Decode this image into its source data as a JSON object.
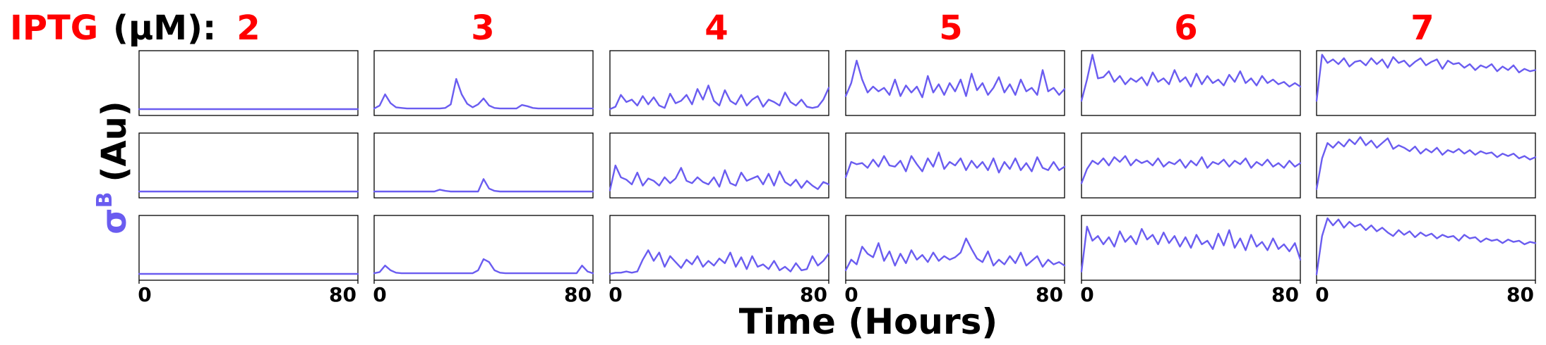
{
  "figure": {
    "iptg_prefix": "IPTG",
    "iptg_unit": "(μM):",
    "iptg_values": [
      "2",
      "3",
      "4",
      "5",
      "6",
      "7"
    ],
    "ylabel_symbol": "σ",
    "ylabel_superscript": "B",
    "ylabel_unit": "(Au)",
    "xlabel": "Time (Hours)",
    "colors": {
      "accent": "#ff0000",
      "trace": "#6a5cf0",
      "text": "#000000",
      "frame": "#000000"
    }
  },
  "chart_data": {
    "type": "line",
    "title": "",
    "xlabel": "Time (Hours)",
    "ylabel": "σB (Au)",
    "xlim": [
      0,
      80
    ],
    "x_ticks": [
      0,
      80
    ],
    "x_tick_labels": [
      "0",
      "80"
    ],
    "ylim": [
      0,
      1
    ],
    "y_ticks_shown": false,
    "grid": false,
    "x_step_hours": 2,
    "iptg_levels_uM": [
      2,
      3,
      4,
      5,
      6,
      7
    ],
    "series": [
      {
        "iptg": 2,
        "replicate": 1,
        "values": [
          0.06,
          0.06,
          0.06,
          0.06,
          0.06,
          0.06,
          0.06,
          0.06,
          0.06,
          0.06,
          0.06,
          0.06,
          0.06,
          0.06,
          0.06,
          0.06,
          0.06,
          0.06,
          0.06,
          0.06,
          0.06,
          0.06,
          0.06,
          0.06,
          0.06,
          0.06,
          0.06,
          0.06,
          0.06,
          0.06,
          0.06,
          0.06,
          0.06,
          0.06,
          0.06,
          0.06,
          0.06,
          0.06,
          0.06,
          0.06,
          0.06
        ]
      },
      {
        "iptg": 2,
        "replicate": 2,
        "values": [
          0.06,
          0.06,
          0.06,
          0.06,
          0.06,
          0.06,
          0.06,
          0.06,
          0.06,
          0.06,
          0.06,
          0.06,
          0.06,
          0.06,
          0.06,
          0.06,
          0.06,
          0.06,
          0.06,
          0.06,
          0.06,
          0.06,
          0.06,
          0.06,
          0.06,
          0.06,
          0.06,
          0.06,
          0.06,
          0.06,
          0.06,
          0.06,
          0.06,
          0.06,
          0.06,
          0.06,
          0.06,
          0.06,
          0.06,
          0.06,
          0.06
        ]
      },
      {
        "iptg": 2,
        "replicate": 3,
        "values": [
          0.06,
          0.06,
          0.06,
          0.06,
          0.06,
          0.06,
          0.06,
          0.06,
          0.06,
          0.06,
          0.06,
          0.06,
          0.06,
          0.06,
          0.06,
          0.06,
          0.06,
          0.06,
          0.06,
          0.06,
          0.06,
          0.06,
          0.06,
          0.06,
          0.06,
          0.06,
          0.06,
          0.06,
          0.06,
          0.06,
          0.06,
          0.06,
          0.06,
          0.06,
          0.06,
          0.06,
          0.06,
          0.06,
          0.06,
          0.06,
          0.06
        ]
      },
      {
        "iptg": 3,
        "replicate": 1,
        "values": [
          0.07,
          0.12,
          0.31,
          0.16,
          0.09,
          0.08,
          0.07,
          0.07,
          0.07,
          0.07,
          0.07,
          0.07,
          0.07,
          0.08,
          0.14,
          0.57,
          0.31,
          0.15,
          0.09,
          0.14,
          0.24,
          0.12,
          0.08,
          0.07,
          0.07,
          0.07,
          0.07,
          0.13,
          0.11,
          0.08,
          0.07,
          0.07,
          0.07,
          0.07,
          0.07,
          0.07,
          0.07,
          0.07,
          0.07,
          0.07,
          0.07
        ]
      },
      {
        "iptg": 3,
        "replicate": 2,
        "values": [
          0.06,
          0.06,
          0.06,
          0.06,
          0.06,
          0.06,
          0.06,
          0.06,
          0.06,
          0.06,
          0.06,
          0.06,
          0.09,
          0.07,
          0.06,
          0.06,
          0.06,
          0.06,
          0.06,
          0.06,
          0.27,
          0.11,
          0.07,
          0.06,
          0.06,
          0.06,
          0.06,
          0.06,
          0.06,
          0.06,
          0.06,
          0.06,
          0.06,
          0.06,
          0.06,
          0.06,
          0.06,
          0.06,
          0.06,
          0.06,
          0.06
        ]
      },
      {
        "iptg": 3,
        "replicate": 3,
        "values": [
          0.07,
          0.09,
          0.2,
          0.12,
          0.08,
          0.07,
          0.07,
          0.07,
          0.07,
          0.07,
          0.07,
          0.07,
          0.07,
          0.07,
          0.07,
          0.07,
          0.07,
          0.07,
          0.07,
          0.12,
          0.31,
          0.26,
          0.12,
          0.08,
          0.07,
          0.07,
          0.07,
          0.07,
          0.07,
          0.07,
          0.07,
          0.07,
          0.07,
          0.07,
          0.07,
          0.07,
          0.07,
          0.07,
          0.2,
          0.1,
          0.07
        ]
      },
      {
        "iptg": 4,
        "replicate": 1,
        "values": [
          0.06,
          0.1,
          0.3,
          0.18,
          0.22,
          0.12,
          0.28,
          0.14,
          0.26,
          0.12,
          0.08,
          0.32,
          0.16,
          0.2,
          0.3,
          0.14,
          0.4,
          0.22,
          0.46,
          0.2,
          0.12,
          0.38,
          0.2,
          0.14,
          0.3,
          0.12,
          0.22,
          0.28,
          0.1,
          0.22,
          0.18,
          0.12,
          0.34,
          0.18,
          0.12,
          0.22,
          0.1,
          0.08,
          0.1,
          0.22,
          0.42
        ]
      },
      {
        "iptg": 4,
        "replicate": 2,
        "values": [
          0.08,
          0.5,
          0.3,
          0.26,
          0.18,
          0.38,
          0.16,
          0.28,
          0.24,
          0.16,
          0.3,
          0.2,
          0.28,
          0.46,
          0.24,
          0.2,
          0.3,
          0.22,
          0.18,
          0.3,
          0.14,
          0.42,
          0.2,
          0.16,
          0.38,
          0.24,
          0.28,
          0.32,
          0.18,
          0.36,
          0.16,
          0.4,
          0.22,
          0.16,
          0.26,
          0.12,
          0.24,
          0.16,
          0.1,
          0.22,
          0.18
        ]
      },
      {
        "iptg": 4,
        "replicate": 3,
        "values": [
          0.06,
          0.08,
          0.08,
          0.1,
          0.08,
          0.1,
          0.3,
          0.46,
          0.28,
          0.42,
          0.18,
          0.36,
          0.26,
          0.16,
          0.3,
          0.22,
          0.36,
          0.18,
          0.28,
          0.2,
          0.32,
          0.24,
          0.42,
          0.18,
          0.34,
          0.14,
          0.36,
          0.18,
          0.22,
          0.14,
          0.28,
          0.12,
          0.18,
          0.1,
          0.24,
          0.12,
          0.14,
          0.36,
          0.2,
          0.28,
          0.4
        ]
      },
      {
        "iptg": 5,
        "replicate": 1,
        "values": [
          0.28,
          0.5,
          0.88,
          0.56,
          0.34,
          0.44,
          0.36,
          0.42,
          0.3,
          0.56,
          0.28,
          0.46,
          0.34,
          0.44,
          0.26,
          0.62,
          0.34,
          0.48,
          0.3,
          0.5,
          0.36,
          0.56,
          0.28,
          0.66,
          0.38,
          0.5,
          0.3,
          0.42,
          0.6,
          0.34,
          0.48,
          0.3,
          0.56,
          0.36,
          0.42,
          0.3,
          0.72,
          0.36,
          0.42,
          0.3,
          0.4
        ]
      },
      {
        "iptg": 5,
        "replicate": 2,
        "values": [
          0.3,
          0.56,
          0.52,
          0.54,
          0.46,
          0.6,
          0.48,
          0.66,
          0.5,
          0.48,
          0.58,
          0.4,
          0.66,
          0.52,
          0.4,
          0.62,
          0.48,
          0.72,
          0.44,
          0.56,
          0.5,
          0.62,
          0.42,
          0.58,
          0.46,
          0.56,
          0.42,
          0.62,
          0.38,
          0.56,
          0.44,
          0.62,
          0.42,
          0.54,
          0.4,
          0.64,
          0.46,
          0.42,
          0.56,
          0.42,
          0.48
        ]
      },
      {
        "iptg": 5,
        "replicate": 3,
        "values": [
          0.12,
          0.3,
          0.22,
          0.52,
          0.4,
          0.34,
          0.58,
          0.28,
          0.44,
          0.2,
          0.4,
          0.24,
          0.46,
          0.3,
          0.38,
          0.26,
          0.42,
          0.28,
          0.36,
          0.3,
          0.34,
          0.42,
          0.66,
          0.48,
          0.32,
          0.26,
          0.44,
          0.2,
          0.3,
          0.22,
          0.36,
          0.24,
          0.42,
          0.2,
          0.28,
          0.36,
          0.18,
          0.3,
          0.22,
          0.26,
          0.2
        ]
      },
      {
        "iptg": 6,
        "replicate": 1,
        "values": [
          0.2,
          0.56,
          0.98,
          0.58,
          0.6,
          0.7,
          0.52,
          0.62,
          0.48,
          0.58,
          0.52,
          0.6,
          0.46,
          0.68,
          0.52,
          0.58,
          0.48,
          0.72,
          0.52,
          0.6,
          0.44,
          0.66,
          0.48,
          0.62,
          0.5,
          0.56,
          0.46,
          0.64,
          0.52,
          0.7,
          0.5,
          0.58,
          0.46,
          0.62,
          0.5,
          0.56,
          0.48,
          0.52,
          0.44,
          0.5,
          0.44
        ]
      },
      {
        "iptg": 6,
        "replicate": 2,
        "values": [
          0.2,
          0.44,
          0.58,
          0.52,
          0.62,
          0.5,
          0.64,
          0.56,
          0.66,
          0.5,
          0.6,
          0.54,
          0.58,
          0.5,
          0.62,
          0.48,
          0.56,
          0.52,
          0.6,
          0.46,
          0.58,
          0.5,
          0.64,
          0.46,
          0.56,
          0.52,
          0.6,
          0.48,
          0.58,
          0.52,
          0.62,
          0.46,
          0.56,
          0.5,
          0.6,
          0.48,
          0.54,
          0.46,
          0.58,
          0.48,
          0.54
        ]
      },
      {
        "iptg": 6,
        "replicate": 3,
        "values": [
          0.1,
          0.86,
          0.62,
          0.7,
          0.56,
          0.68,
          0.52,
          0.78,
          0.6,
          0.7,
          0.56,
          0.82,
          0.64,
          0.72,
          0.56,
          0.76,
          0.58,
          0.7,
          0.52,
          0.68,
          0.5,
          0.72,
          0.56,
          0.62,
          0.48,
          0.74,
          0.54,
          0.8,
          0.5,
          0.66,
          0.46,
          0.72,
          0.52,
          0.6,
          0.46,
          0.66,
          0.48,
          0.56,
          0.44,
          0.58,
          0.3
        ]
      },
      {
        "iptg": 7,
        "replicate": 1,
        "values": [
          0.2,
          0.98,
          0.84,
          0.9,
          0.82,
          0.92,
          0.78,
          0.86,
          0.88,
          0.8,
          0.92,
          0.82,
          0.9,
          0.76,
          0.94,
          0.84,
          0.88,
          0.78,
          0.86,
          0.92,
          0.8,
          0.86,
          0.9,
          0.74,
          0.88,
          0.82,
          0.84,
          0.76,
          0.82,
          0.72,
          0.8,
          0.76,
          0.82,
          0.7,
          0.78,
          0.72,
          0.8,
          0.68,
          0.74,
          0.7,
          0.72
        ]
      },
      {
        "iptg": 7,
        "replicate": 2,
        "values": [
          0.1,
          0.62,
          0.88,
          0.8,
          0.9,
          0.82,
          0.94,
          0.86,
          0.98,
          0.84,
          0.92,
          0.8,
          0.88,
          0.96,
          0.78,
          0.84,
          0.8,
          0.74,
          0.82,
          0.7,
          0.78,
          0.72,
          0.8,
          0.68,
          0.76,
          0.72,
          0.78,
          0.7,
          0.76,
          0.68,
          0.74,
          0.7,
          0.72,
          0.64,
          0.7,
          0.66,
          0.7,
          0.62,
          0.66,
          0.6,
          0.64
        ]
      },
      {
        "iptg": 7,
        "replicate": 3,
        "values": [
          0.05,
          0.7,
          1.0,
          0.88,
          0.98,
          0.84,
          0.94,
          0.86,
          0.9,
          0.8,
          0.88,
          0.78,
          0.84,
          0.76,
          0.7,
          0.8,
          0.72,
          0.78,
          0.68,
          0.76,
          0.7,
          0.74,
          0.66,
          0.72,
          0.68,
          0.7,
          0.62,
          0.72,
          0.66,
          0.68,
          0.6,
          0.66,
          0.62,
          0.64,
          0.58,
          0.64,
          0.6,
          0.62,
          0.56,
          0.6,
          0.58
        ]
      }
    ]
  }
}
